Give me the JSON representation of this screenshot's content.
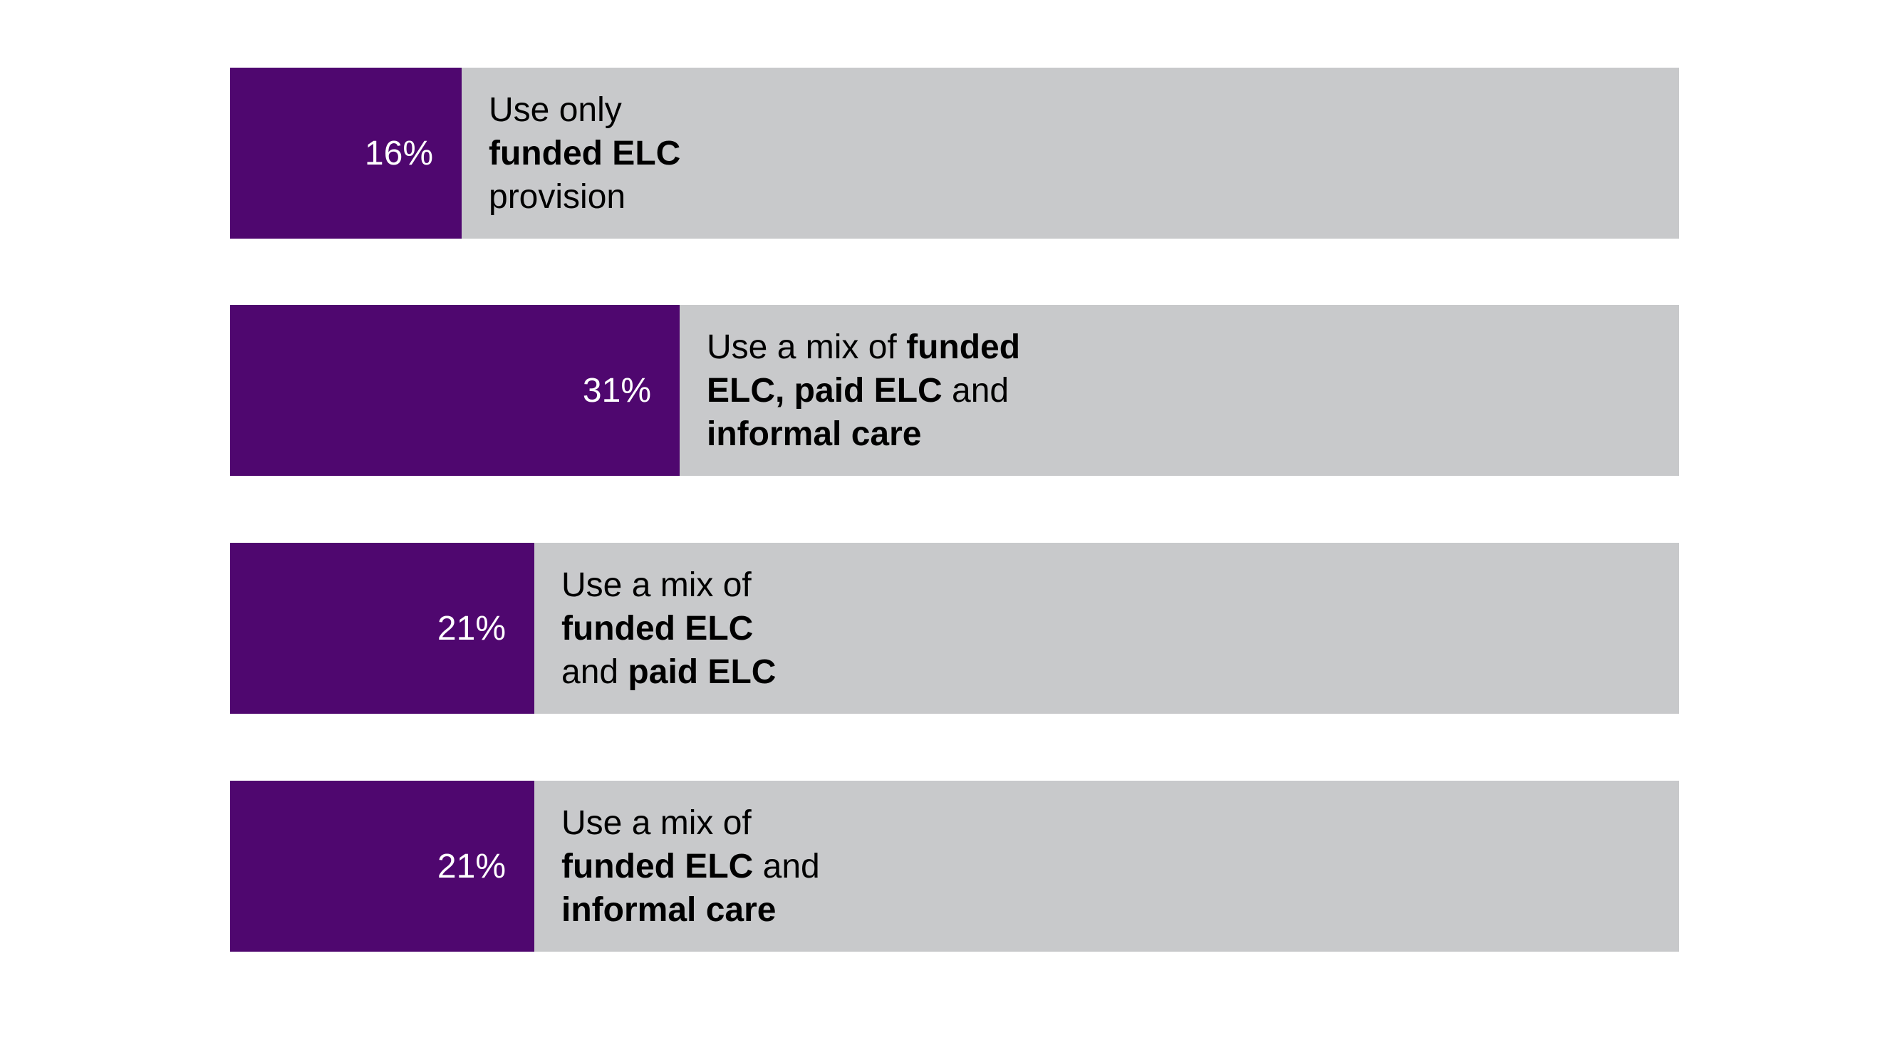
{
  "chart_data": {
    "type": "bar",
    "orientation": "horizontal",
    "xlim": [
      0,
      100
    ],
    "colors": {
      "bar": "#4f076f",
      "track": "#c8c9cb",
      "value_text": "#ffffff",
      "label_text": "#000000"
    },
    "bars": [
      {
        "value": 16,
        "value_label": "16%",
        "label_lines": [
          [
            {
              "text": "Use only",
              "bold": false
            }
          ],
          [
            {
              "text": "funded ELC",
              "bold": true
            }
          ],
          [
            {
              "text": "provision",
              "bold": false
            }
          ]
        ]
      },
      {
        "value": 31,
        "value_label": "31%",
        "label_lines": [
          [
            {
              "text": "Use a mix of ",
              "bold": false
            },
            {
              "text": "funded",
              "bold": true
            }
          ],
          [
            {
              "text": "ELC, paid ELC",
              "bold": true
            },
            {
              "text": " and",
              "bold": false
            }
          ],
          [
            {
              "text": "informal care",
              "bold": true
            }
          ]
        ]
      },
      {
        "value": 21,
        "value_label": "21%",
        "label_lines": [
          [
            {
              "text": "Use a mix of",
              "bold": false
            }
          ],
          [
            {
              "text": "funded ELC",
              "bold": true
            }
          ],
          [
            {
              "text": "and ",
              "bold": false
            },
            {
              "text": "paid ELC",
              "bold": true
            }
          ]
        ]
      },
      {
        "value": 21,
        "value_label": "21%",
        "label_lines": [
          [
            {
              "text": "Use a mix of",
              "bold": false
            }
          ],
          [
            {
              "text": "funded ELC",
              "bold": true
            },
            {
              "text": " and",
              "bold": false
            }
          ],
          [
            {
              "text": "informal care",
              "bold": true
            }
          ]
        ]
      }
    ]
  }
}
